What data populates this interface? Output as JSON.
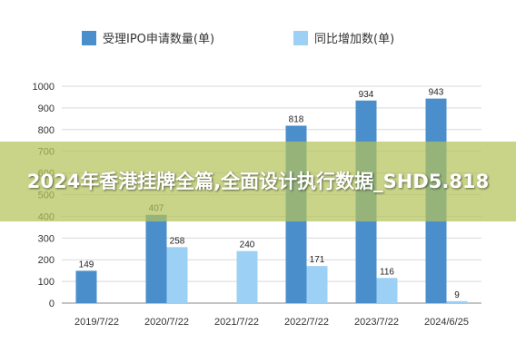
{
  "banner": {
    "title": "2024年香港挂牌全篇,全面设计执行数据_SHD5.818"
  },
  "colors": {
    "series1": "#4a8ecb",
    "series2": "#9dd0f5",
    "grid": "#d9d9d9",
    "axis": "#888888",
    "banner_bg": "#b4c35a"
  },
  "chart_data": {
    "type": "bar",
    "categories": [
      "2019/7/22",
      "2020/7/22",
      "2021/7/22",
      "2022/7/22",
      "2023/7/22",
      "2024/6/25"
    ],
    "series": [
      {
        "name": "受理IPO申请数量(单)",
        "values": [
          149,
          407,
          null,
          818,
          934,
          943
        ]
      },
      {
        "name": "同比增加数(单)",
        "values": [
          null,
          258,
          240,
          171,
          116,
          9
        ]
      }
    ],
    "data_labels": {
      "series1": [
        "149",
        "407",
        "",
        "818",
        "934",
        "943"
      ],
      "series2": [
        "",
        "258",
        "240",
        "171",
        "116",
        "9"
      ]
    },
    "ylim": [
      0,
      1000
    ],
    "yticks": [
      "0",
      "100",
      "200",
      "300",
      "400",
      "500",
      "600",
      "700",
      "800",
      "900",
      "1000"
    ],
    "grid": true,
    "legend_position": "top"
  }
}
